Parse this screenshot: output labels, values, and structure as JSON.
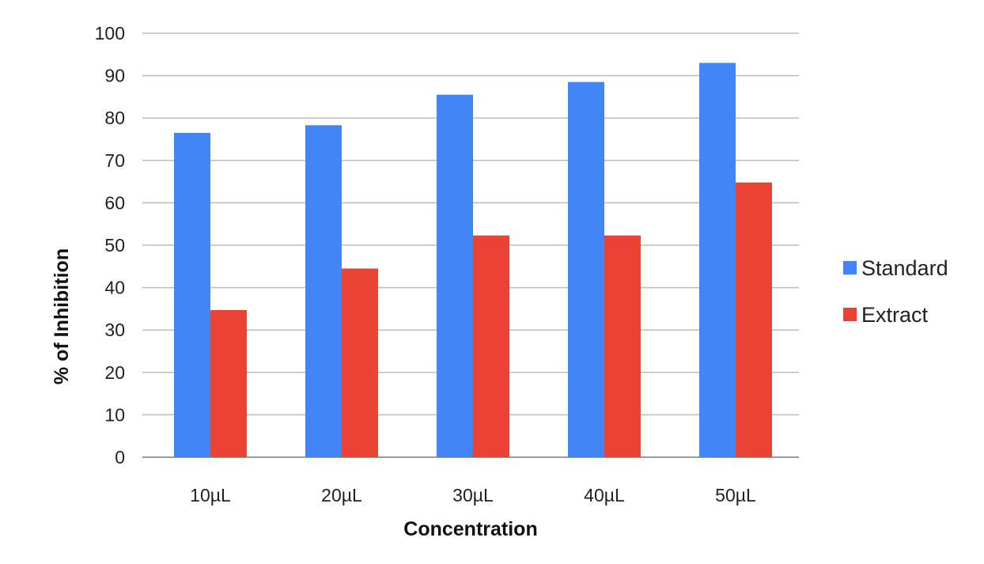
{
  "chart_data": {
    "type": "bar",
    "title": "",
    "xlabel": "Concentration",
    "ylabel": "% of Inhibition",
    "categories": [
      "10µL",
      "20µL",
      "30µL",
      "40µL",
      "50µL"
    ],
    "series": [
      {
        "name": "Standard",
        "color": "#4285f4",
        "values": [
          76.5,
          78.3,
          85.5,
          88.5,
          93.0
        ]
      },
      {
        "name": "Extract",
        "color": "#ea4335",
        "values": [
          34.7,
          44.5,
          52.3,
          52.3,
          64.8
        ]
      }
    ],
    "ylim": [
      0,
      100
    ],
    "yticks": [
      "0",
      "10",
      "20",
      "30",
      "40",
      "50",
      "60",
      "70",
      "80",
      "90",
      "100"
    ],
    "grid": true,
    "legend_position": "right"
  }
}
